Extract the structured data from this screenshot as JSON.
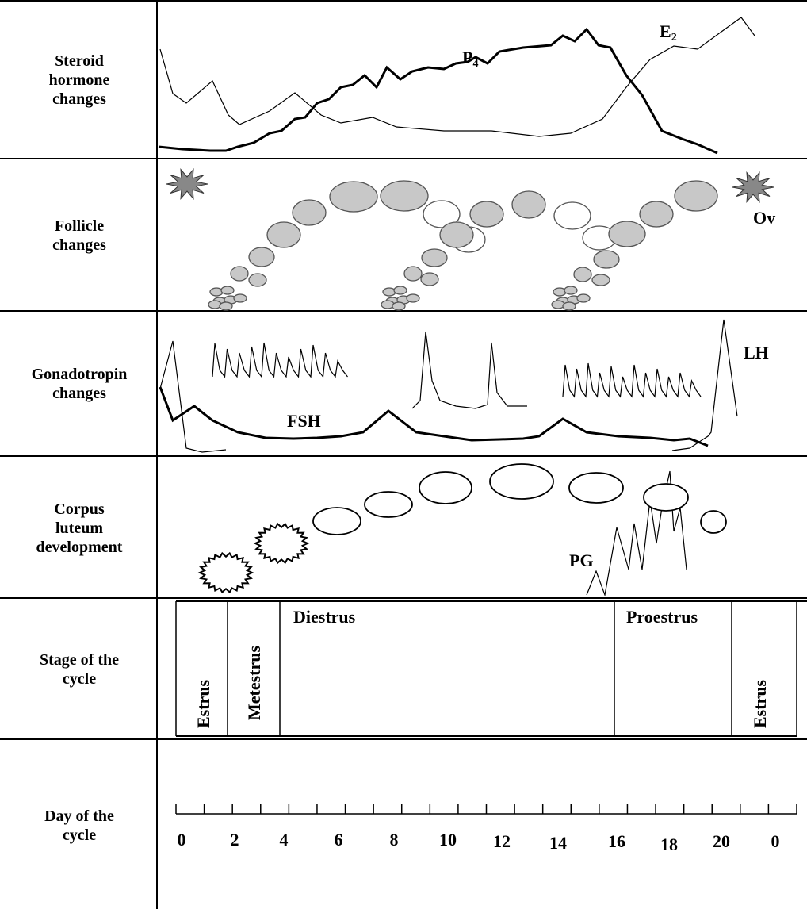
{
  "rows": [
    {
      "label": [
        "Steroid",
        "hormone",
        "changes"
      ]
    },
    {
      "label": [
        "Follicle",
        "changes"
      ]
    },
    {
      "label": [
        "Gonadotropin",
        "changes"
      ]
    },
    {
      "label": [
        "Corpus",
        "luteum",
        "development"
      ]
    },
    {
      "label": [
        "Stage of the",
        "cycle"
      ]
    },
    {
      "label": [
        "Day of the",
        "cycle"
      ]
    }
  ],
  "hormones": {
    "progesterone": {
      "symbol": "P",
      "subscript": "4"
    },
    "estradiol": {
      "symbol": "E",
      "subscript": "2"
    }
  },
  "follicle_label": "Ov",
  "gonadotropins": {
    "lh": "LH",
    "fsh": "FSH"
  },
  "corpus_luteum_label": "PG",
  "stages": [
    "Estrus",
    "Metestrus",
    "Diestrus",
    "Proestrus",
    "Estrus"
  ],
  "days": [
    0,
    2,
    4,
    6,
    8,
    10,
    12,
    14,
    16,
    18,
    20,
    0
  ]
}
